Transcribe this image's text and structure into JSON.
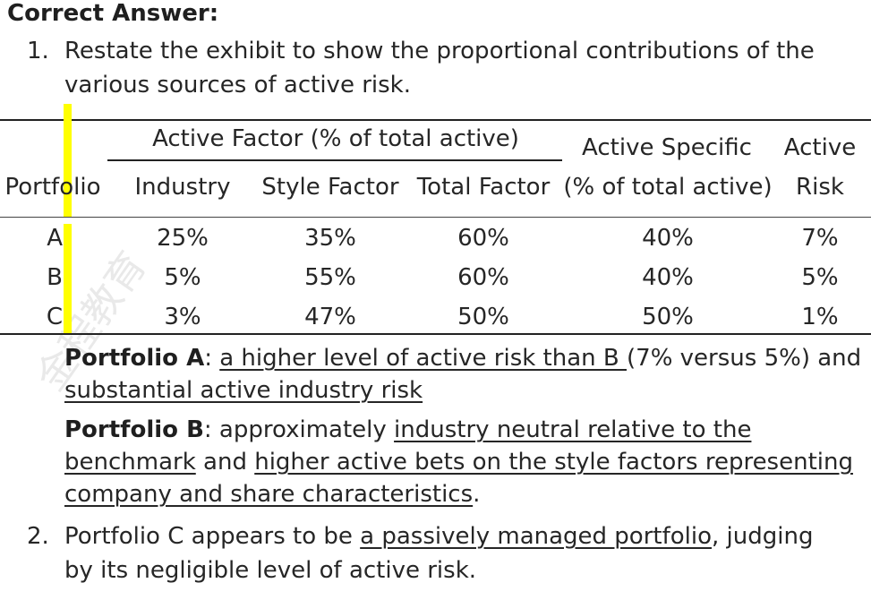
{
  "heading": "Correct Answer:",
  "item1": {
    "number": "1.",
    "line1": "Restate the exhibit to show the proportional contributions of the",
    "line2": "various sources of active risk."
  },
  "table": {
    "group_header": "Active Factor (% of total active)",
    "specific_header_line1": "Active Specific",
    "specific_header_line2": "(% of total active)",
    "risk_header_line1": "Active",
    "risk_header_line2": "Risk",
    "columns": [
      "Portfolio",
      "Industry",
      "Style Factor",
      "Total Factor"
    ],
    "rows": [
      [
        "A",
        "25%",
        "35%",
        "60%",
        "40%",
        "7%"
      ],
      [
        "B",
        "5%",
        "55%",
        "60%",
        "40%",
        "5%"
      ],
      [
        "C",
        "3%",
        "47%",
        "50%",
        "50%",
        "1%"
      ]
    ]
  },
  "portfolio_a": {
    "label": "Portfolio A",
    "colon": ":",
    "u1": "a higher level of active risk than B ",
    "rest1": "(7% versus 5%) and",
    "u2": "substantial active industry risk"
  },
  "portfolio_b": {
    "label": "Portfolio B",
    "text1": ": approximately ",
    "u1": "industry neutral relative to the",
    "u2": "benchmark",
    "text2": " and ",
    "u3": "higher active bets on the style factors representing",
    "u4": "company and share characteristics",
    "text3": "."
  },
  "item2": {
    "number": "2.",
    "text1": "Portfolio C appears to be ",
    "u1": "a passively managed portfolio",
    "text2": ", judging",
    "line2": "by its negligible level of active risk."
  },
  "watermark": "金程教育",
  "colors": {
    "highlight": "#ffff00",
    "text": "#262626"
  }
}
